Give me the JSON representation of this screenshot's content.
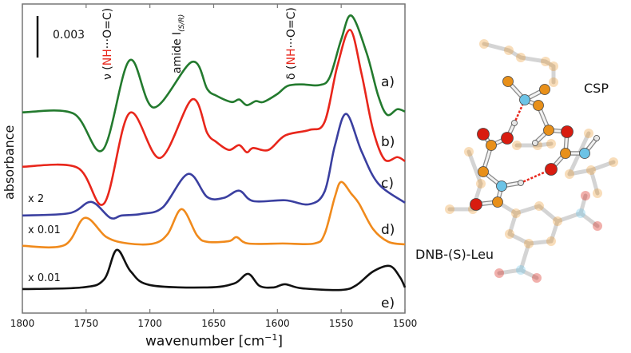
{
  "chart_data": {
    "type": "line",
    "xlabel": "wavenumber [cm",
    "xlabel_sup": "−1",
    "xlabel_end": "]",
    "ylabel": "absorbance",
    "xlim": [
      1800,
      1500
    ],
    "ylim": [
      0,
      22.3
    ],
    "y_units_note": "1e-3 absorbance, vertically offset",
    "x_ticks": [
      "1800",
      "1750",
      "1700",
      "1650",
      "1600",
      "1550",
      "1500"
    ],
    "x_tick_values": [
      1800,
      1750,
      1700,
      1650,
      1600,
      1550,
      1500
    ],
    "scale_bar": {
      "value": 3,
      "label": "0.003"
    },
    "series": [
      {
        "name": "a)",
        "color": "#237a2e",
        "scale_label": "",
        "points": [
          [
            1800,
            14.48
          ],
          [
            1760,
            14.4
          ],
          [
            1737,
            11.77
          ],
          [
            1716,
            18.23
          ],
          [
            1697,
            14.83
          ],
          [
            1667,
            18.12
          ],
          [
            1655,
            16.16
          ],
          [
            1648,
            15.69
          ],
          [
            1636,
            15.23
          ],
          [
            1630,
            15.41
          ],
          [
            1624,
            15.0
          ],
          [
            1617,
            15.29
          ],
          [
            1611,
            15.23
          ],
          [
            1600,
            15.81
          ],
          [
            1592,
            16.39
          ],
          [
            1581,
            16.5
          ],
          [
            1567,
            16.45
          ],
          [
            1559,
            17.02
          ],
          [
            1550,
            19.73
          ],
          [
            1542,
            21.46
          ],
          [
            1530,
            18.75
          ],
          [
            1521,
            15.69
          ],
          [
            1514,
            14.31
          ],
          [
            1506,
            14.71
          ],
          [
            1500,
            14.54
          ]
        ]
      },
      {
        "name": "b)",
        "color": "#e8261b",
        "scale_label": "",
        "points": [
          [
            1800,
            10.56
          ],
          [
            1757,
            10.5
          ],
          [
            1736,
            7.9
          ],
          [
            1716,
            14.43
          ],
          [
            1692,
            11.19
          ],
          [
            1667,
            15.41
          ],
          [
            1655,
            12.98
          ],
          [
            1648,
            12.35
          ],
          [
            1638,
            11.77
          ],
          [
            1630,
            12.12
          ],
          [
            1624,
            11.6
          ],
          [
            1619,
            11.91
          ],
          [
            1607,
            11.77
          ],
          [
            1594,
            12.81
          ],
          [
            1575,
            13.21
          ],
          [
            1563,
            13.79
          ],
          [
            1553,
            17.83
          ],
          [
            1543,
            20.43
          ],
          [
            1534,
            17.25
          ],
          [
            1525,
            13.21
          ],
          [
            1516,
            11.08
          ],
          [
            1506,
            11.25
          ],
          [
            1500,
            10.96
          ]
        ]
      },
      {
        "name": "c)",
        "color": "#3a3fa0",
        "scale_label": "x 2",
        "points": [
          [
            1800,
            7.04
          ],
          [
            1763,
            7.21
          ],
          [
            1746,
            8.02
          ],
          [
            1731,
            6.87
          ],
          [
            1722,
            7.04
          ],
          [
            1707,
            7.15
          ],
          [
            1690,
            7.62
          ],
          [
            1670,
            10.04
          ],
          [
            1655,
            8.37
          ],
          [
            1642,
            8.31
          ],
          [
            1630,
            8.83
          ],
          [
            1619,
            8.08
          ],
          [
            1594,
            8.14
          ],
          [
            1575,
            7.85
          ],
          [
            1563,
            8.77
          ],
          [
            1555,
            12.06
          ],
          [
            1546,
            14.37
          ],
          [
            1534,
            11.66
          ],
          [
            1521,
            9.35
          ],
          [
            1500,
            7.96
          ]
        ]
      },
      {
        "name": "d)",
        "color": "#f08a1c",
        "scale_label": "x 0.01",
        "points": [
          [
            1800,
            4.85
          ],
          [
            1767,
            4.9
          ],
          [
            1751,
            6.87
          ],
          [
            1734,
            5.48
          ],
          [
            1717,
            5.02
          ],
          [
            1697,
            5.02
          ],
          [
            1686,
            5.71
          ],
          [
            1675,
            7.5
          ],
          [
            1663,
            5.6
          ],
          [
            1655,
            5.14
          ],
          [
            1638,
            5.19
          ],
          [
            1632,
            5.48
          ],
          [
            1623,
            5.02
          ],
          [
            1596,
            5.02
          ],
          [
            1571,
            5.02
          ],
          [
            1563,
            5.71
          ],
          [
            1555,
            8.37
          ],
          [
            1550,
            9.46
          ],
          [
            1542,
            8.6
          ],
          [
            1536,
            7.9
          ],
          [
            1525,
            6.06
          ],
          [
            1513,
            5.14
          ],
          [
            1500,
            4.96
          ]
        ]
      },
      {
        "name": "e)",
        "color": "#111111",
        "scale_label": "x 0.01",
        "points": [
          [
            1800,
            1.73
          ],
          [
            1753,
            1.85
          ],
          [
            1736,
            2.42
          ],
          [
            1726,
            4.56
          ],
          [
            1715,
            3.0
          ],
          [
            1700,
            2.02
          ],
          [
            1655,
            1.85
          ],
          [
            1634,
            2.13
          ],
          [
            1623,
            2.83
          ],
          [
            1614,
            1.96
          ],
          [
            1603,
            1.85
          ],
          [
            1594,
            2.08
          ],
          [
            1581,
            1.79
          ],
          [
            1550,
            1.67
          ],
          [
            1538,
            2.02
          ],
          [
            1525,
            3.0
          ],
          [
            1512,
            3.4
          ],
          [
            1504,
            2.6
          ],
          [
            1500,
            1.85
          ]
        ]
      }
    ],
    "annotations": [
      {
        "pre": "ν (",
        "red": "NH",
        "post": "···O=C)",
        "x": 1716
      },
      {
        "pre": "amide I",
        "sub": "(S/R)",
        "x": 1667
      },
      {
        "pre": "δ (",
        "red": "NH",
        "post": "···O=C)",
        "x": 1585
      }
    ]
  },
  "molecule": {
    "label_csp": "CSP",
    "label_analyte": "DNB-(S)-Leu",
    "colors": {
      "carbon": "#e8901a",
      "nitrogen": "#6cc3e6",
      "oxygen": "#d81c10",
      "hydrogen": "#e6e6e6",
      "hbond": "#e8261b"
    }
  }
}
